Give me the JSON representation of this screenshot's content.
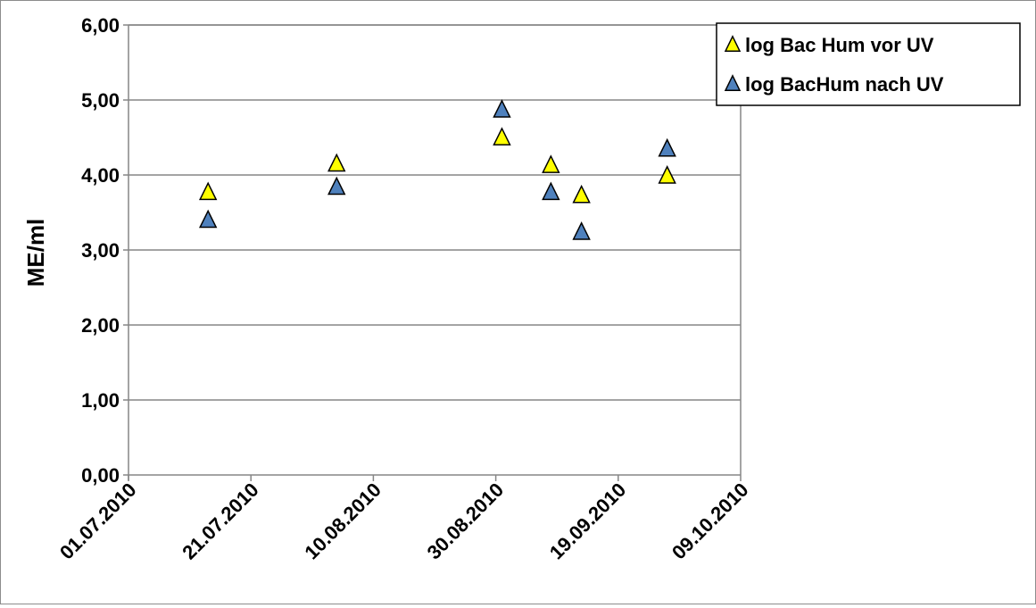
{
  "chart_data": {
    "type": "scatter",
    "ylabel": "ME/ml",
    "xlabel": "",
    "title": "",
    "x_ticks": [
      "01.07.2010",
      "21.07.2010",
      "10.08.2010",
      "30.08.2010",
      "19.09.2010",
      "09.10.2010"
    ],
    "y_ticks": [
      "0,00",
      "1,00",
      "2,00",
      "3,00",
      "4,00",
      "5,00",
      "6,00"
    ],
    "xlim": [
      "2010-07-01",
      "2010-10-09"
    ],
    "ylim": [
      0,
      6
    ],
    "grid": "horizontal",
    "legend_position": "top-right",
    "series": [
      {
        "name": "log Bac Hum vor UV",
        "marker": "triangle",
        "color": "#ffff00",
        "points": [
          {
            "x": "2010-07-14",
            "y": 3.77
          },
          {
            "x": "2010-08-04",
            "y": 4.15
          },
          {
            "x": "2010-08-31",
            "y": 4.5
          },
          {
            "x": "2010-09-08",
            "y": 4.13
          },
          {
            "x": "2010-09-13",
            "y": 3.73
          },
          {
            "x": "2010-09-27",
            "y": 3.99
          }
        ]
      },
      {
        "name": "log BacHum nach UV",
        "marker": "triangle",
        "color": "#4f81bd",
        "points": [
          {
            "x": "2010-07-14",
            "y": 3.4
          },
          {
            "x": "2010-08-04",
            "y": 3.84
          },
          {
            "x": "2010-08-31",
            "y": 4.87
          },
          {
            "x": "2010-09-08",
            "y": 3.77
          },
          {
            "x": "2010-09-13",
            "y": 3.24
          },
          {
            "x": "2010-09-27",
            "y": 4.35
          }
        ]
      }
    ]
  }
}
